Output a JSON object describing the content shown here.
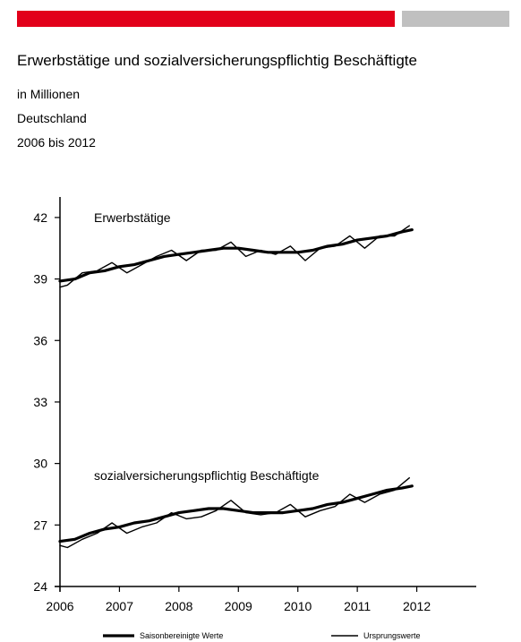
{
  "header": {
    "accent_color": "#e2001a",
    "secondary_color": "#c0c0c0"
  },
  "title": "Erwerbstätige und sozialversicherungspflichtig Beschäftigte",
  "subtitle_unit": "in Millionen",
  "subtitle_region": "Deutschland",
  "subtitle_period": "2006 bis 2012",
  "chart_data": {
    "type": "line",
    "x_ticks": [
      "2006",
      "2007",
      "2008",
      "2009",
      "2010",
      "2011",
      "2012"
    ],
    "y_ticks": [
      "24",
      "27",
      "30",
      "33",
      "36",
      "39",
      "42"
    ],
    "ylim": [
      24,
      43
    ],
    "xlim": [
      2006,
      2013
    ],
    "grid": false,
    "legend_position": "bottom",
    "annotations": [
      "Erwerbstätige",
      "sozialversicherungspflichtig Beschäftigte"
    ],
    "series": [
      {
        "name": "Saisonbereinigte Werte",
        "group": "Erwerbstätige",
        "style": "thick",
        "x": [
          2006.0,
          2006.25,
          2006.5,
          2006.75,
          2007.0,
          2007.25,
          2007.5,
          2007.75,
          2008.0,
          2008.25,
          2008.5,
          2008.75,
          2009.0,
          2009.25,
          2009.5,
          2009.75,
          2010.0,
          2010.25,
          2010.5,
          2010.75,
          2011.0,
          2011.25,
          2011.5,
          2011.75,
          2011.92
        ],
        "values": [
          38.9,
          39.0,
          39.3,
          39.4,
          39.6,
          39.7,
          39.9,
          40.1,
          40.2,
          40.3,
          40.4,
          40.5,
          40.5,
          40.4,
          40.3,
          40.3,
          40.3,
          40.4,
          40.6,
          40.7,
          40.9,
          41.0,
          41.1,
          41.3,
          41.4
        ]
      },
      {
        "name": "Ursprungswerte",
        "group": "Erwerbstätige",
        "style": "thin",
        "x": [
          2006.0,
          2006.125,
          2006.375,
          2006.625,
          2006.875,
          2007.125,
          2007.375,
          2007.625,
          2007.875,
          2008.125,
          2008.375,
          2008.625,
          2008.875,
          2009.125,
          2009.375,
          2009.625,
          2009.875,
          2010.125,
          2010.375,
          2010.625,
          2010.875,
          2011.125,
          2011.375,
          2011.625,
          2011.875
        ],
        "values": [
          38.6,
          38.7,
          39.3,
          39.4,
          39.8,
          39.3,
          39.7,
          40.1,
          40.4,
          39.9,
          40.4,
          40.4,
          40.8,
          40.1,
          40.4,
          40.2,
          40.6,
          39.9,
          40.5,
          40.6,
          41.1,
          40.5,
          41.1,
          41.1,
          41.6
        ]
      },
      {
        "name": "Saisonbereinigte Werte",
        "group": "sozialversicherungspflichtig Beschäftigte",
        "style": "thick",
        "x": [
          2006.0,
          2006.25,
          2006.5,
          2006.75,
          2007.0,
          2007.25,
          2007.5,
          2007.75,
          2008.0,
          2008.25,
          2008.5,
          2008.75,
          2009.0,
          2009.25,
          2009.5,
          2009.75,
          2010.0,
          2010.25,
          2010.5,
          2010.75,
          2011.0,
          2011.25,
          2011.5,
          2011.75,
          2011.92
        ],
        "values": [
          26.2,
          26.3,
          26.6,
          26.8,
          26.9,
          27.1,
          27.2,
          27.4,
          27.6,
          27.7,
          27.8,
          27.8,
          27.7,
          27.6,
          27.6,
          27.6,
          27.7,
          27.8,
          28.0,
          28.1,
          28.3,
          28.5,
          28.7,
          28.8,
          28.9
        ]
      },
      {
        "name": "Ursprungswerte",
        "group": "sozialversicherungspflichtig Beschäftigte",
        "style": "thin",
        "x": [
          2006.0,
          2006.125,
          2006.375,
          2006.625,
          2006.875,
          2007.125,
          2007.375,
          2007.625,
          2007.875,
          2008.125,
          2008.375,
          2008.625,
          2008.875,
          2009.125,
          2009.375,
          2009.625,
          2009.875,
          2010.125,
          2010.375,
          2010.625,
          2010.875,
          2011.125,
          2011.375,
          2011.625,
          2011.875
        ],
        "values": [
          26.0,
          25.9,
          26.3,
          26.6,
          27.1,
          26.6,
          26.9,
          27.1,
          27.6,
          27.3,
          27.4,
          27.7,
          28.2,
          27.6,
          27.5,
          27.6,
          28.0,
          27.4,
          27.7,
          27.9,
          28.5,
          28.1,
          28.5,
          28.7,
          29.3
        ]
      }
    ],
    "legend": [
      {
        "label": "Saisonbereinigte Werte",
        "style": "thick"
      },
      {
        "label": "Ursprungswerte",
        "style": "thin"
      }
    ]
  }
}
